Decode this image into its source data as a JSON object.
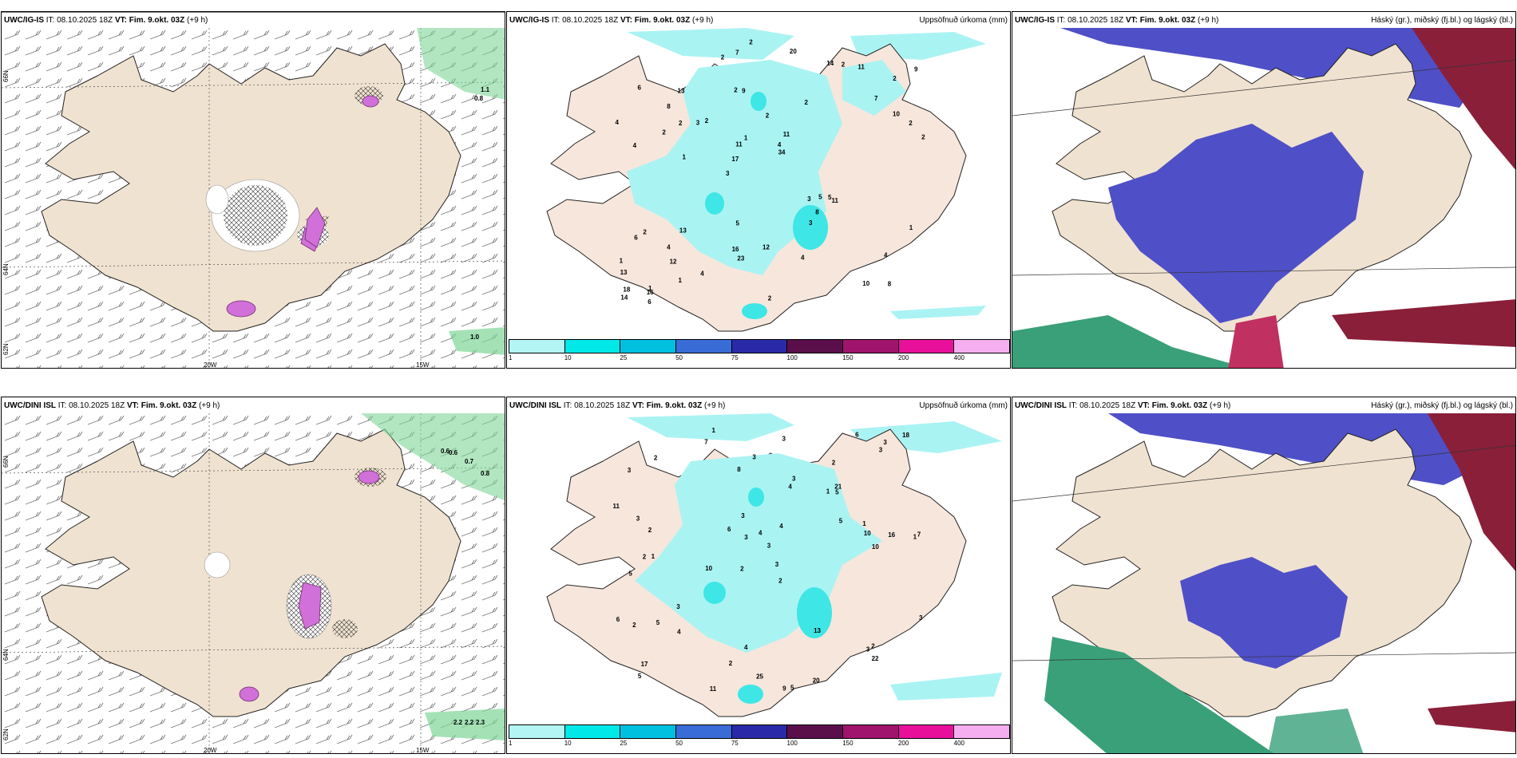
{
  "panels": {
    "p1": {
      "model": "UWC/IG-IS",
      "it": " IT: 08.10.2025 18Z ",
      "vt_label": "VT:",
      "vt": " Fim. 9.okt. 03Z",
      "lead": " (+9 h)",
      "right_title": ""
    },
    "p2": {
      "model": "UWC/IG-IS",
      "it": " IT: 08.10.2025 18Z ",
      "vt_label": "VT:",
      "vt": " Fim. 9.okt. 03Z",
      "lead": " (+9 h)",
      "right_title": "Uppsöfnuð úrkoma (mm)"
    },
    "p3": {
      "model": "UWC/IG-IS",
      "it": " IT: 08.10.2025 18Z ",
      "vt_label": "VT:",
      "vt": " Fim. 9.okt. 03Z",
      "lead": " (+9 h)",
      "right_title": "Háský (gr.), miðský (fj.bl.) og lágský (bl.)"
    },
    "p4": {
      "model": "UWC/DINI ISL",
      "it": " IT: 08.10.2025 18Z ",
      "vt_label": "VT:",
      "vt": " Fim. 9.okt. 03Z",
      "lead": " (+9 h)",
      "right_title": ""
    },
    "p5": {
      "model": "UWC/DINI ISL",
      "it": " IT: 08.10.2025 18Z ",
      "vt_label": "VT:",
      "vt": " Fim. 9.okt. 03Z",
      "lead": " (+9 h)",
      "right_title": "Uppsöfnuð úrkoma (mm)"
    },
    "p6": {
      "model": "UWC/DINI ISL",
      "it": " IT: 08.10.2025 18Z ",
      "vt_label": "VT:",
      "vt": " Fim. 9.okt. 03Z",
      "lead": " (+9 h)",
      "right_title": "Háský (gr.), miðský (fj.bl.) og lágský (bl.)"
    }
  },
  "axis_labels": {
    "lon_20w": "20W",
    "lon_15w": "15W",
    "lat_66n": "66N",
    "lat_64n": "64N",
    "lat_62n": "62N"
  },
  "colorbar": {
    "ticks": [
      "1",
      "10",
      "25",
      "50",
      "75",
      "100",
      "150",
      "200",
      "400"
    ],
    "colors": [
      "#b3f5f5",
      "#00e8e8",
      "#00c0e0",
      "#3a6cd8",
      "#2a2aa8",
      "#5a0f4a",
      "#a0146e",
      "#e8109a",
      "#f5aef0"
    ]
  },
  "wind_labels_top": [
    "1.1",
    "0.8",
    "1.0"
  ],
  "wind_labels_bottom": [
    "0.6",
    "0.6",
    "0.7",
    "0.8",
    "2.2",
    "2.2",
    "2.3"
  ],
  "precip_top": [
    "8",
    "4",
    "2",
    "3",
    "2",
    "1",
    "2",
    "2",
    "2",
    "2",
    "13",
    "12",
    "9",
    "11",
    "11",
    "6",
    "7",
    "2",
    "3",
    "10",
    "17",
    "16",
    "11",
    "13",
    "14",
    "13",
    "10",
    "4",
    "5",
    "2",
    "3",
    "2",
    "3",
    "1",
    "2",
    "4",
    "18",
    "23",
    "34",
    "6",
    "7",
    "9",
    "8",
    "4",
    "4",
    "6",
    "14",
    "12",
    "11",
    "2",
    "1",
    "4",
    "8",
    "2",
    "16",
    "20",
    "2",
    "1",
    "1",
    "5",
    "4",
    "5",
    "2",
    "1"
  ],
  "precip_bottom": [
    "1",
    "2",
    "1",
    "2",
    "2",
    "1",
    "3",
    "1",
    "5",
    "4",
    "3",
    "5",
    "7",
    "10",
    "9",
    "5",
    "4",
    "6",
    "5",
    "3",
    "2",
    "2",
    "7",
    "16",
    "6",
    "3",
    "3",
    "10",
    "2",
    "2",
    "3",
    "3",
    "5",
    "6",
    "13",
    "3",
    "1",
    "2",
    "18",
    "3",
    "17",
    "11",
    "20",
    "2",
    "25",
    "5",
    "22",
    "21",
    "11",
    "3",
    "8",
    "10",
    "4",
    "3",
    "3",
    "4",
    "3",
    "4",
    "3"
  ],
  "colors": {
    "land": "#f0e2d0",
    "cyan": "#aaf3f3",
    "wind_green": "#7ed597",
    "purple": "#d070d8",
    "blue": "#4f4fc7",
    "maroon": "#8a1f3a",
    "teal": "#3aa07a"
  }
}
